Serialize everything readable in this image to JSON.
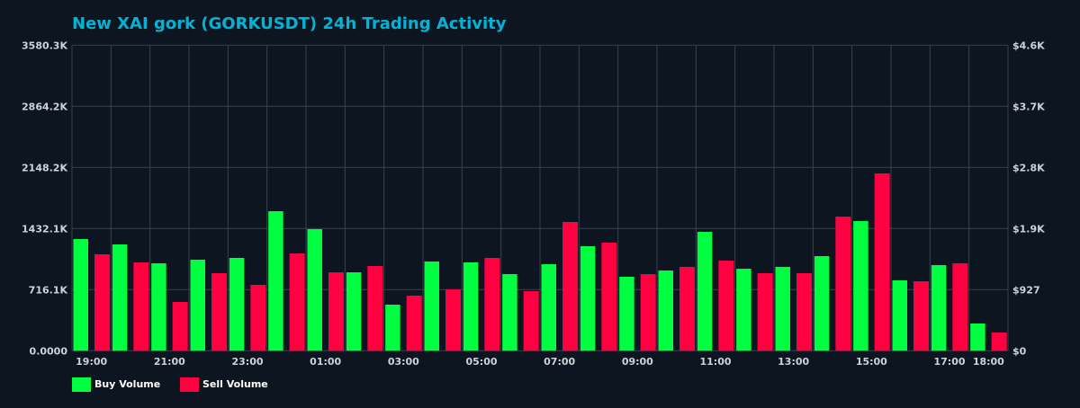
{
  "chart_data": {
    "type": "bar",
    "title": "New XAI gork (GORKUSDT) 24h Trading Activity",
    "categories": [
      "19:00",
      "20:00",
      "21:00",
      "22:00",
      "23:00",
      "00:00",
      "01:00",
      "02:00",
      "03:00",
      "04:00",
      "05:00",
      "06:00",
      "07:00",
      "08:00",
      "09:00",
      "10:00",
      "11:00",
      "12:00",
      "13:00",
      "14:00",
      "15:00",
      "16:00",
      "17:00",
      "18:00"
    ],
    "x_tick_labels": [
      "19:00",
      "21:00",
      "23:00",
      "01:00",
      "03:00",
      "05:00",
      "07:00",
      "09:00",
      "11:00",
      "13:00",
      "15:00",
      "17:00",
      "18:00"
    ],
    "series": [
      {
        "name": "Buy Volume",
        "color": "#00ff41",
        "values": [
          1309,
          1246,
          1025,
          1067,
          1088,
          1635,
          1425,
          919,
          540,
          1046,
          1035,
          898,
          1014,
          1225,
          867,
          940,
          1393,
          961,
          983,
          1109,
          1520,
          825,
          1004,
          319
        ]
      },
      {
        "name": "Sell Volume",
        "color": "#ff0040",
        "values": [
          1130,
          1035,
          572,
          909,
          772,
          1140,
          919,
          993,
          646,
          719,
          1088,
          698,
          1509,
          1267,
          898,
          983,
          1056,
          909,
          909,
          1572,
          2078,
          814,
          1025,
          214
        ]
      }
    ],
    "value_unit": "K",
    "ylim": [
      0,
      3580.3
    ],
    "y_tick_labels": [
      "0.0000",
      "716.1K",
      "1432.1K",
      "2148.2K",
      "2864.2K",
      "3580.3K"
    ],
    "y2_tick_labels": [
      "$0",
      "$927",
      "$1.9K",
      "$2.8K",
      "$3.7K",
      "$4.6K"
    ],
    "grid": true,
    "legend_position": "bottom-left",
    "colors": {
      "background": "#0d1520",
      "title": "#00b4d8",
      "grid": "#3a414a"
    }
  }
}
